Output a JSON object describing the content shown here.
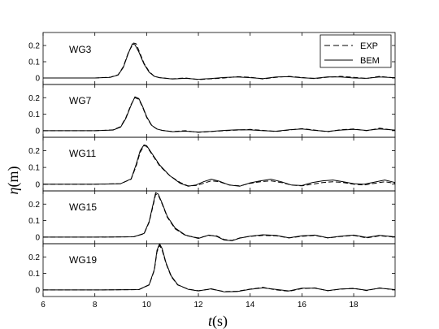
{
  "chart_data": {
    "type": "line",
    "xlabel_var": "t",
    "xlabel_unit": "(s)",
    "ylabel_var": "η",
    "ylabel_unit": "(m)",
    "xlim": [
      6,
      19.6
    ],
    "ylim": [
      -0.04,
      0.28
    ],
    "x_ticks": [
      "6",
      "8",
      "10",
      "12",
      "14",
      "16",
      "18"
    ],
    "y_ticks": [
      "0",
      "0.1",
      "0.2"
    ],
    "grid": false,
    "legend": {
      "placement": "top-right of first panel",
      "entries": [
        {
          "label": "EXP",
          "style": "dashed"
        },
        {
          "label": "BEM",
          "style": "solid"
        }
      ]
    },
    "colors": {
      "lines": "#000000",
      "axes": "#000000"
    },
    "panels": [
      {
        "label": "WG3",
        "series": [
          {
            "name": "EXP",
            "x": [
              6,
              8,
              8.6,
              8.9,
              9.1,
              9.3,
              9.5,
              9.6,
              9.7,
              9.9,
              10.1,
              10.3,
              10.5,
              11,
              11.5,
              12,
              12.5,
              13,
              13.5,
              14,
              14.5,
              15,
              15.5,
              16,
              16.5,
              17,
              17.5,
              18,
              18.5,
              19,
              19.6
            ],
            "y": [
              0,
              0,
              0.005,
              0.02,
              0.07,
              0.16,
              0.215,
              0.21,
              0.17,
              0.09,
              0.04,
              0.01,
              0.002,
              -0.005,
              0,
              -0.01,
              -0.005,
              0,
              0.008,
              0.005,
              -0.006,
              0.004,
              0.01,
              0.003,
              -0.004,
              0.005,
              0.01,
              0.004,
              -0.003,
              0.01,
              0
            ]
          },
          {
            "name": "BEM",
            "x": [
              6,
              8,
              8.6,
              8.9,
              9.1,
              9.3,
              9.45,
              9.55,
              9.7,
              9.9,
              10.1,
              10.3,
              10.5,
              11,
              11.5,
              12,
              12.5,
              13,
              13.5,
              14,
              14.5,
              15,
              15.5,
              16,
              16.5,
              17,
              17.5,
              18,
              18.5,
              19,
              19.6
            ],
            "y": [
              0,
              0,
              0.004,
              0.018,
              0.065,
              0.155,
              0.21,
              0.205,
              0.16,
              0.085,
              0.035,
              0.01,
              0.002,
              -0.006,
              -0.002,
              -0.008,
              -0.003,
              0.003,
              0.006,
              0.002,
              -0.004,
              0.006,
              0.008,
              0.001,
              -0.002,
              0.007,
              0.006,
              0,
              -0.002,
              0.006,
              0.002
            ]
          }
        ]
      },
      {
        "label": "WG7",
        "series": [
          {
            "name": "EXP",
            "x": [
              6,
              8,
              8.7,
              9,
              9.2,
              9.4,
              9.55,
              9.7,
              9.85,
              10,
              10.2,
              10.4,
              10.6,
              11,
              11.5,
              12,
              12.5,
              13,
              13.5,
              14,
              14.5,
              15,
              15.5,
              16,
              16.5,
              17,
              17.5,
              18,
              18.5,
              19,
              19.6
            ],
            "y": [
              0,
              0,
              0.005,
              0.025,
              0.08,
              0.16,
              0.2,
              0.19,
              0.14,
              0.08,
              0.03,
              0.01,
              0.002,
              -0.005,
              0,
              -0.01,
              -0.005,
              0,
              0.004,
              0.008,
              0.002,
              -0.005,
              0.004,
              0.012,
              0.004,
              -0.006,
              0.006,
              0.01,
              0,
              0.015,
              0.002
            ]
          },
          {
            "name": "BEM",
            "x": [
              6,
              8,
              8.7,
              9,
              9.2,
              9.4,
              9.55,
              9.7,
              9.85,
              10,
              10.2,
              10.4,
              10.6,
              11,
              11.5,
              12,
              12.5,
              13,
              13.5,
              14,
              14.5,
              15,
              15.5,
              16,
              16.5,
              17,
              17.5,
              18,
              18.5,
              19,
              19.6
            ],
            "y": [
              0,
              0,
              0.004,
              0.022,
              0.075,
              0.155,
              0.205,
              0.195,
              0.145,
              0.085,
              0.032,
              0.01,
              0.002,
              -0.006,
              -0.003,
              -0.008,
              -0.004,
              0.002,
              0.006,
              0.005,
              0,
              -0.003,
              0.006,
              0.01,
              0.002,
              -0.004,
              0.004,
              0.008,
              0.002,
              0.01,
              0.004
            ]
          }
        ]
      },
      {
        "label": "WG11",
        "series": [
          {
            "name": "EXP",
            "x": [
              6,
              8,
              9,
              9.4,
              9.6,
              9.75,
              9.9,
              10,
              10.2,
              10.5,
              10.9,
              11.3,
              11.6,
              11.9,
              12.2,
              12.5,
              12.8,
              13.2,
              13.6,
              14,
              14.4,
              14.8,
              15.2,
              15.6,
              16,
              16.4,
              16.8,
              17.2,
              17.6,
              18,
              18.4,
              18.8,
              19.2,
              19.6
            ],
            "y": [
              0,
              0,
              0.003,
              0.03,
              0.11,
              0.19,
              0.23,
              0.225,
              0.18,
              0.11,
              0.05,
              0.01,
              -0.01,
              -0.008,
              0.005,
              0.02,
              0.015,
              -0.005,
              -0.01,
              0.005,
              0.015,
              0.02,
              0.01,
              -0.005,
              -0.01,
              0,
              0.01,
              0.015,
              0.01,
              0,
              -0.005,
              0.005,
              0.015,
              0.005
            ]
          },
          {
            "name": "BEM",
            "x": [
              6,
              8,
              9,
              9.4,
              9.6,
              9.75,
              9.9,
              10,
              10.2,
              10.5,
              10.9,
              11.3,
              11.6,
              11.9,
              12.2,
              12.5,
              12.8,
              13.2,
              13.6,
              14,
              14.4,
              14.8,
              15.2,
              15.6,
              16,
              16.4,
              16.8,
              17.2,
              17.6,
              18,
              18.4,
              18.8,
              19.2,
              19.6
            ],
            "y": [
              0,
              0,
              0.003,
              0.032,
              0.12,
              0.2,
              0.235,
              0.23,
              0.185,
              0.115,
              0.05,
              0.005,
              -0.012,
              -0.005,
              0.015,
              0.03,
              0.018,
              -0.005,
              -0.012,
              0.008,
              0.02,
              0.03,
              0.015,
              -0.005,
              -0.008,
              0.01,
              0.02,
              0.025,
              0.015,
              0.003,
              0,
              0.012,
              0.025,
              0.01
            ]
          }
        ]
      },
      {
        "label": "WG15",
        "series": [
          {
            "name": "EXP",
            "x": [
              6,
              8,
              9.5,
              9.9,
              10.1,
              10.25,
              10.35,
              10.45,
              10.6,
              10.8,
              11.1,
              11.5,
              12,
              12.4,
              12.7,
              13,
              13.3,
              13.6,
              14,
              14.5,
              15,
              15.5,
              16,
              16.5,
              17,
              17.5,
              18,
              18.5,
              19,
              19.6
            ],
            "y": [
              0,
              0,
              0.002,
              0.02,
              0.09,
              0.19,
              0.26,
              0.255,
              0.2,
              0.12,
              0.05,
              0.01,
              -0.005,
              0.01,
              0.008,
              -0.015,
              -0.02,
              -0.005,
              0.005,
              0.01,
              0.008,
              -0.005,
              0.005,
              0.01,
              -0.005,
              0.004,
              0.01,
              -0.005,
              0.008,
              0
            ]
          },
          {
            "name": "BEM",
            "x": [
              6,
              8,
              9.5,
              9.9,
              10.1,
              10.25,
              10.35,
              10.45,
              10.6,
              10.8,
              11.1,
              11.5,
              12,
              12.4,
              12.7,
              13,
              13.3,
              13.6,
              14,
              14.5,
              15,
              15.5,
              16,
              16.5,
              17,
              17.5,
              18,
              18.5,
              19,
              19.6
            ],
            "y": [
              0,
              0,
              0.002,
              0.022,
              0.095,
              0.2,
              0.27,
              0.26,
              0.205,
              0.125,
              0.055,
              0.012,
              -0.008,
              0.012,
              0.005,
              -0.018,
              -0.022,
              -0.006,
              0.006,
              0.014,
              0.01,
              -0.004,
              0.008,
              0.012,
              -0.004,
              0.006,
              0.012,
              -0.002,
              0.01,
              0.002
            ]
          }
        ]
      },
      {
        "label": "WG19",
        "series": [
          {
            "name": "EXP",
            "x": [
              6,
              8,
              9.7,
              10.1,
              10.3,
              10.4,
              10.5,
              10.6,
              10.75,
              10.95,
              11.2,
              11.6,
              12,
              12.5,
              13,
              13.5,
              14,
              14.5,
              15,
              15.5,
              16,
              16.5,
              17,
              17.5,
              18,
              18.5,
              19,
              19.6
            ],
            "y": [
              0,
              0,
              0.002,
              0.03,
              0.12,
              0.23,
              0.27,
              0.24,
              0.16,
              0.08,
              0.03,
              0.005,
              -0.005,
              0.005,
              -0.01,
              -0.008,
              0.005,
              0.015,
              0,
              -0.008,
              0.008,
              0.012,
              -0.005,
              0.005,
              0.01,
              -0.004,
              0.012,
              0
            ]
          },
          {
            "name": "BEM",
            "x": [
              6,
              8,
              9.7,
              10.1,
              10.3,
              10.4,
              10.5,
              10.6,
              10.75,
              10.95,
              11.2,
              11.6,
              12,
              12.5,
              13,
              13.5,
              14,
              14.5,
              15,
              15.5,
              16,
              16.5,
              17,
              17.5,
              18,
              18.5,
              19,
              19.6
            ],
            "y": [
              0,
              0,
              0.002,
              0.032,
              0.125,
              0.24,
              0.28,
              0.25,
              0.165,
              0.085,
              0.032,
              0.004,
              -0.006,
              0.007,
              -0.012,
              -0.01,
              0.004,
              0.012,
              0.003,
              -0.006,
              0.01,
              0.01,
              -0.004,
              0.006,
              0.008,
              -0.002,
              0.01,
              0.002
            ]
          }
        ]
      }
    ]
  }
}
